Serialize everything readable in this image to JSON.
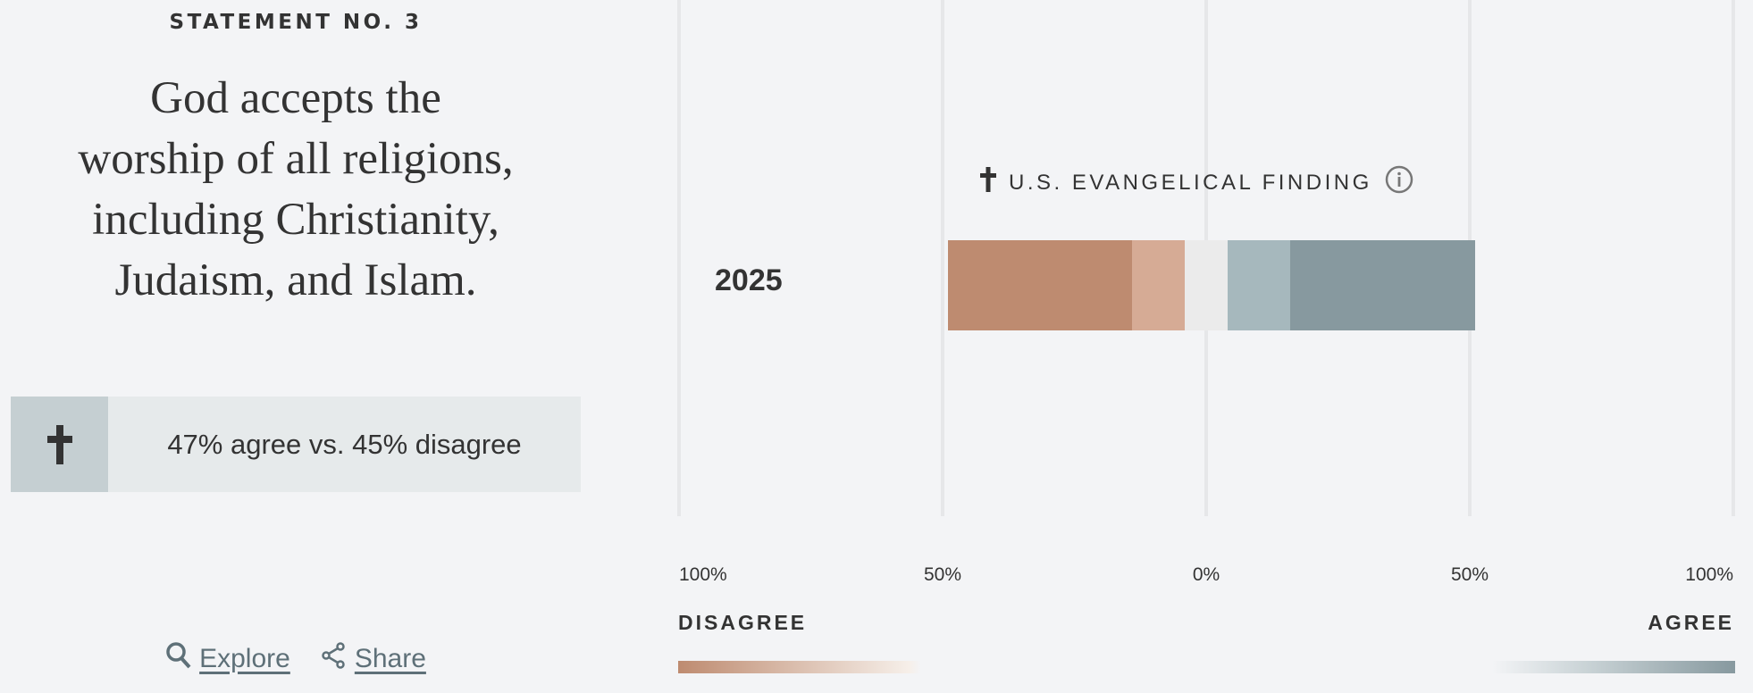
{
  "statement": {
    "kicker": "STATEMENT NO. 3",
    "headline_lines": [
      "God accepts the",
      "worship of all religions,",
      "including Christianity,",
      "Judaism, and Islam."
    ],
    "summary": "47% agree vs. 45% disagree",
    "summary_icon": "cross-icon"
  },
  "actions": {
    "explore": "Explore",
    "share": "Share"
  },
  "chart_data": {
    "type": "bar",
    "orientation": "horizontal-diverging",
    "title": "U.S. EVANGELICAL FINDING",
    "title_icon": "cross-icon",
    "info_icon": "info-icon",
    "categories": [
      "2025"
    ],
    "series": [
      {
        "key": "strongly_disagree",
        "values": [
          35
        ],
        "color": "#be8b70",
        "side": "disagree"
      },
      {
        "key": "somewhat_disagree",
        "values": [
          10
        ],
        "color": "#d6ab95",
        "side": "disagree"
      },
      {
        "key": "neutral",
        "values": [
          8
        ],
        "color": "#ebebeb",
        "side": "center"
      },
      {
        "key": "somewhat_agree",
        "values": [
          12
        ],
        "color": "#a6b8bd",
        "side": "agree"
      },
      {
        "key": "strongly_agree",
        "values": [
          35
        ],
        "color": "#87999f",
        "side": "agree"
      }
    ],
    "xlim": [
      -100,
      100
    ],
    "ticks": [
      -100,
      -50,
      0,
      50,
      100
    ],
    "tick_labels": [
      "100%",
      "50%",
      "0%",
      "50%",
      "100%"
    ],
    "grid": true,
    "legend": {
      "left_label": "DISAGREE",
      "right_label": "AGREE",
      "left_color": "#be8b70",
      "right_color": "#87999f"
    }
  }
}
